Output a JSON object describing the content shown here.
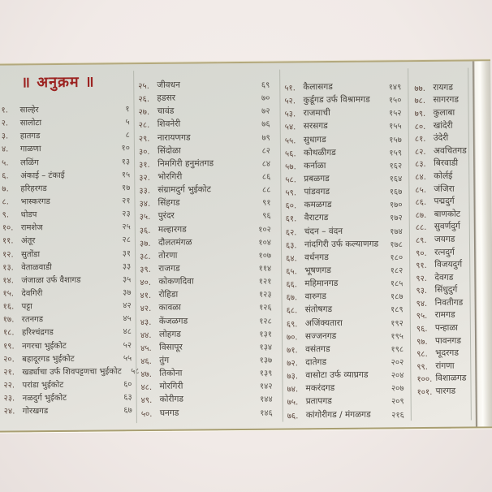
{
  "page": {
    "title": "॥ अनुक्रम ॥",
    "title_color": "#9c2321",
    "paper_color": "#dcdcd6",
    "background_color": "#f1eae7",
    "columns": [
      {
        "entries": [
          {
            "num": "१.",
            "name": "साल्हेर",
            "page": "१"
          },
          {
            "num": "२.",
            "name": "सालोटा",
            "page": "५"
          },
          {
            "num": "३.",
            "name": "हातगड",
            "page": "८"
          },
          {
            "num": "४.",
            "name": "गाळणा",
            "page": "१०"
          },
          {
            "num": "५.",
            "name": "लळिंग",
            "page": "१३"
          },
          {
            "num": "६.",
            "name": "अंकाई – टंकाई",
            "page": "१५"
          },
          {
            "num": "७.",
            "name": "हरिहरगड",
            "page": "१७"
          },
          {
            "num": "८.",
            "name": "भास्करगड",
            "page": "२१"
          },
          {
            "num": "९.",
            "name": "धोडप",
            "page": "२३"
          },
          {
            "num": "१०.",
            "name": "रामशेज",
            "page": "२५"
          },
          {
            "num": "११.",
            "name": "अंतूर",
            "page": "२८"
          },
          {
            "num": "१२.",
            "name": "सुतोंडा",
            "page": "३१"
          },
          {
            "num": "१३.",
            "name": "वेताळवाडी",
            "page": "३३"
          },
          {
            "num": "१४.",
            "name": "जंजाळा उर्फ वैशागड",
            "page": "३५"
          },
          {
            "num": "१५.",
            "name": "देवगिरी",
            "page": "३७"
          },
          {
            "num": "१६.",
            "name": "पट्टा",
            "page": "४२"
          },
          {
            "num": "१७.",
            "name": "रतनगड",
            "page": "४५"
          },
          {
            "num": "१८.",
            "name": "हरिश्चंद्रगड",
            "page": "४८"
          },
          {
            "num": "१९.",
            "name": "नगरचा भुईकोट",
            "page": "५२"
          },
          {
            "num": "२०.",
            "name": "बहादूरगड भुईकोट",
            "page": "५५"
          },
          {
            "num": "२१.",
            "name": "खर्ड्याचा उर्फ शिवपट्टणचा भुईकोट",
            "page": "५८"
          },
          {
            "num": "२२.",
            "name": "परांडा भुईकोट",
            "page": "६०"
          },
          {
            "num": "२३.",
            "name": "नळदुर्ग भुईकोट",
            "page": "६३"
          },
          {
            "num": "२४.",
            "name": "गोरखगड",
            "page": "६७"
          }
        ]
      },
      {
        "entries": [
          {
            "num": "२५.",
            "name": "जीवधन",
            "page": "६९"
          },
          {
            "num": "२६.",
            "name": "हडसर",
            "page": "७०"
          },
          {
            "num": "२७.",
            "name": "चावंड",
            "page": "७२"
          },
          {
            "num": "२८.",
            "name": "शिवनेरी",
            "page": "७६"
          },
          {
            "num": "२९.",
            "name": "नारायणगड",
            "page": "७९"
          },
          {
            "num": "३०.",
            "name": "सिंदोळा",
            "page": "८२"
          },
          {
            "num": "३१.",
            "name": "निमगिरी हनुमंतगड",
            "page": "८४"
          },
          {
            "num": "३२.",
            "name": "भोरगिरी",
            "page": "८६"
          },
          {
            "num": "३३.",
            "name": "संग्रामदुर्ग भुईकोट",
            "page": "८८"
          },
          {
            "num": "३४.",
            "name": "सिंहगड",
            "page": "९१"
          },
          {
            "num": "३५.",
            "name": "पुरंदर",
            "page": "९६"
          },
          {
            "num": "३६.",
            "name": "मल्हारगड",
            "page": "१०२"
          },
          {
            "num": "३७.",
            "name": "दौलतमंगळ",
            "page": "१०४"
          },
          {
            "num": "३८.",
            "name": "तोरणा",
            "page": "१०७"
          },
          {
            "num": "३९.",
            "name": "राजगड",
            "page": "११४"
          },
          {
            "num": "४०.",
            "name": "कोकणदिवा",
            "page": "१२१"
          },
          {
            "num": "४१.",
            "name": "रोहिडा",
            "page": "१२३"
          },
          {
            "num": "४२.",
            "name": "कावळा",
            "page": "१२६"
          },
          {
            "num": "४३.",
            "name": "केंजळगड",
            "page": "१२८"
          },
          {
            "num": "४४.",
            "name": "लोहगड",
            "page": "१३१"
          },
          {
            "num": "४५.",
            "name": "विसापूर",
            "page": "१३४"
          },
          {
            "num": "४६.",
            "name": "तुंग",
            "page": "१३७"
          },
          {
            "num": "४७.",
            "name": "तिकोना",
            "page": "१३९"
          },
          {
            "num": "४८.",
            "name": "मोरगिरी",
            "page": "१४२"
          },
          {
            "num": "४९.",
            "name": "कोरीगड",
            "page": "१४४"
          },
          {
            "num": "५०.",
            "name": "घनगड",
            "page": "१४६"
          }
        ]
      },
      {
        "entries": [
          {
            "num": "५१.",
            "name": "कैलासगड",
            "page": "१४९"
          },
          {
            "num": "५२.",
            "name": "कुर्डूगड उर्फ विश्रामगड",
            "page": "१५०"
          },
          {
            "num": "५३.",
            "name": "राजमाची",
            "page": "१५२"
          },
          {
            "num": "५४.",
            "name": "सरसगड",
            "page": "१५५"
          },
          {
            "num": "५५.",
            "name": "सुधागड",
            "page": "१५७"
          },
          {
            "num": "५६.",
            "name": "कोथळीगड",
            "page": "१५९"
          },
          {
            "num": "५७.",
            "name": "कर्नाळा",
            "page": "१६२"
          },
          {
            "num": "५८.",
            "name": "प्रबळगड",
            "page": "१६४"
          },
          {
            "num": "५९.",
            "name": "पांडवगड",
            "page": "१६७"
          },
          {
            "num": "६०.",
            "name": "कमळगड",
            "page": "१७०"
          },
          {
            "num": "६१.",
            "name": "वैराटगड",
            "page": "१७२"
          },
          {
            "num": "६२.",
            "name": "चंदन – वंदन",
            "page": "१७४"
          },
          {
            "num": "६३.",
            "name": "नांदगिरी उर्फ कल्याणगड",
            "page": "१७८"
          },
          {
            "num": "६४.",
            "name": "वर्धनगड",
            "page": "१८०"
          },
          {
            "num": "६५.",
            "name": "भूषणगड",
            "page": "१८२"
          },
          {
            "num": "६६.",
            "name": "महिमानगड",
            "page": "१८५"
          },
          {
            "num": "६७.",
            "name": "वारुगड",
            "page": "१८७"
          },
          {
            "num": "६८.",
            "name": "संतोषगड",
            "page": "१८९"
          },
          {
            "num": "६९.",
            "name": "अजिंक्यतारा",
            "page": "१९२"
          },
          {
            "num": "७०.",
            "name": "सज्जनगड",
            "page": "१९५"
          },
          {
            "num": "७१.",
            "name": "वसंतगड",
            "page": "१९८"
          },
          {
            "num": "७२.",
            "name": "दातेगड",
            "page": "२०२"
          },
          {
            "num": "७३.",
            "name": "वासोटा उर्फ व्याघ्रगड",
            "page": "२०४"
          },
          {
            "num": "७४.",
            "name": "मकरंदगड",
            "page": "२०७"
          },
          {
            "num": "७५.",
            "name": "प्रतापगड",
            "page": "२०९"
          },
          {
            "num": "७६.",
            "name": "कांगोरीगड / मंगळगड",
            "page": "२१६"
          }
        ]
      },
      {
        "entries": [
          {
            "num": "७७.",
            "name": "रायगड",
            "page": ""
          },
          {
            "num": "७८.",
            "name": "सागरगड",
            "page": ""
          },
          {
            "num": "७९.",
            "name": "कुलाबा",
            "page": ""
          },
          {
            "num": "८०.",
            "name": "खांदेरी",
            "page": ""
          },
          {
            "num": "८१.",
            "name": "उंदेरी",
            "page": ""
          },
          {
            "num": "८२.",
            "name": "अवचितगड",
            "page": ""
          },
          {
            "num": "८३.",
            "name": "बिरवाडी",
            "page": ""
          },
          {
            "num": "८४.",
            "name": "कोर्लई",
            "page": ""
          },
          {
            "num": "८५.",
            "name": "जंजिरा",
            "page": ""
          },
          {
            "num": "८६.",
            "name": "पद्मदुर्ग",
            "page": ""
          },
          {
            "num": "८७.",
            "name": "बाणकोट",
            "page": ""
          },
          {
            "num": "८८.",
            "name": "सुवर्णदुर्ग",
            "page": ""
          },
          {
            "num": "८९.",
            "name": "जयगड",
            "page": ""
          },
          {
            "num": "९०.",
            "name": "रत्नदुर्ग",
            "page": ""
          },
          {
            "num": "९१.",
            "name": "विजयदुर्ग",
            "page": ""
          },
          {
            "num": "९२.",
            "name": "देवगड",
            "page": ""
          },
          {
            "num": "९३.",
            "name": "सिंधुदुर्ग",
            "page": ""
          },
          {
            "num": "९४.",
            "name": "निवतीगड",
            "page": ""
          },
          {
            "num": "९५.",
            "name": "रामगड",
            "page": ""
          },
          {
            "num": "९६.",
            "name": "पन्हाळा",
            "page": ""
          },
          {
            "num": "९७.",
            "name": "पावनगड",
            "page": ""
          },
          {
            "num": "९८.",
            "name": "भूदरगड",
            "page": ""
          },
          {
            "num": "९९.",
            "name": "रांगणा",
            "page": ""
          },
          {
            "num": "१००.",
            "name": "विशाळगड",
            "page": ""
          },
          {
            "num": "१०१.",
            "name": "पारगड",
            "page": ""
          }
        ]
      }
    ]
  }
}
